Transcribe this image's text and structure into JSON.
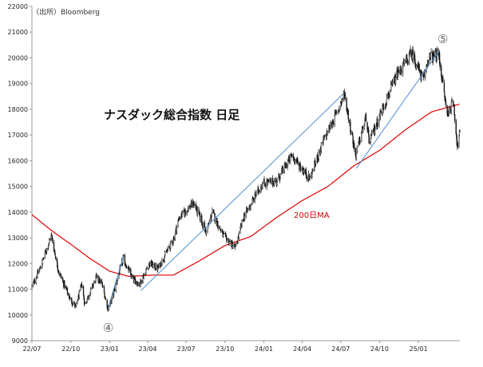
{
  "chart_data": {
    "type": "candlestick",
    "source": "（出所）Bloomberg",
    "title": "ナスダック総合指数 日足",
    "ylim": [
      9000,
      22000
    ],
    "y_ticks": [
      "9000",
      "10000",
      "11000",
      "12000",
      "13000",
      "14000",
      "15000",
      "16000",
      "17000",
      "18000",
      "19000",
      "20000",
      "21000",
      "22000"
    ],
    "x_ticks": [
      "22/07",
      "22/10",
      "23/01",
      "23/04",
      "23/07",
      "23/10",
      "24/01",
      "24/04",
      "24/07",
      "24/10",
      "25/01"
    ],
    "x_start": "2022-07-01",
    "x_end": "2025-04-09",
    "price_path": [
      [
        "2022-07-01",
        11100
      ],
      [
        "2022-07-20",
        11800
      ],
      [
        "2022-08-16",
        13100
      ],
      [
        "2022-09-02",
        11700
      ],
      [
        "2022-09-30",
        10600
      ],
      [
        "2022-10-13",
        10300
      ],
      [
        "2022-10-27",
        11200
      ],
      [
        "2022-11-03",
        10400
      ],
      [
        "2022-11-30",
        11450
      ],
      [
        "2022-12-13",
        11250
      ],
      [
        "2022-12-28",
        10250
      ],
      [
        "2023-01-06",
        10600
      ],
      [
        "2023-02-02",
        12200
      ],
      [
        "2023-02-24",
        11400
      ],
      [
        "2023-03-13",
        11200
      ],
      [
        "2023-04-05",
        12000
      ],
      [
        "2023-04-25",
        11800
      ],
      [
        "2023-05-31",
        12900
      ],
      [
        "2023-06-15",
        13800
      ],
      [
        "2023-07-19",
        14350
      ],
      [
        "2023-08-18",
        13200
      ],
      [
        "2023-09-01",
        14000
      ],
      [
        "2023-09-26",
        13100
      ],
      [
        "2023-10-26",
        12600
      ],
      [
        "2023-11-14",
        13800
      ],
      [
        "2023-12-28",
        15100
      ],
      [
        "2024-01-31",
        15200
      ],
      [
        "2024-03-07",
        16200
      ],
      [
        "2024-04-19",
        15300
      ],
      [
        "2024-05-22",
        16800
      ],
      [
        "2024-06-20",
        17800
      ],
      [
        "2024-07-10",
        18600
      ],
      [
        "2024-08-05",
        16200
      ],
      [
        "2024-08-30",
        17700
      ],
      [
        "2024-09-06",
        16700
      ],
      [
        "2024-10-15",
        18300
      ],
      [
        "2024-11-11",
        19300
      ],
      [
        "2024-12-16",
        20200
      ],
      [
        "2025-01-13",
        19100
      ],
      [
        "2025-01-24",
        20000
      ],
      [
        "2025-02-18",
        20100
      ],
      [
        "2025-03-10",
        17800
      ],
      [
        "2025-03-25",
        18300
      ],
      [
        "2025-04-03",
        16550
      ],
      [
        "2025-04-09",
        17100
      ]
    ],
    "ma200_path": [
      [
        "2022-07-01",
        13900
      ],
      [
        "2022-08-15",
        13300
      ],
      [
        "2022-10-01",
        12750
      ],
      [
        "2022-11-15",
        12200
      ],
      [
        "2023-01-01",
        11700
      ],
      [
        "2023-02-15",
        11500
      ],
      [
        "2023-04-15",
        11550
      ],
      [
        "2023-06-01",
        11550
      ],
      [
        "2023-08-01",
        12100
      ],
      [
        "2023-10-01",
        12700
      ],
      [
        "2023-12-01",
        13050
      ],
      [
        "2024-02-01",
        13800
      ],
      [
        "2024-04-01",
        14450
      ],
      [
        "2024-06-01",
        15000
      ],
      [
        "2024-08-01",
        15800
      ],
      [
        "2024-10-01",
        16400
      ],
      [
        "2024-12-01",
        17200
      ],
      [
        "2025-02-01",
        17900
      ],
      [
        "2025-04-09",
        18200
      ]
    ],
    "trendlines": [
      [
        [
          "2022-12-28",
          10250
        ],
        [
          "2023-02-02",
          12250
        ]
      ],
      [
        [
          "2023-03-16",
          10950
        ],
        [
          "2024-07-10",
          18650
        ]
      ],
      [
        [
          "2024-08-07",
          15700
        ],
        [
          "2025-02-20",
          20300
        ]
      ]
    ],
    "annotations": {
      "ma_label": "200日MA",
      "wave4": "④",
      "wave5": "⑤"
    },
    "colors": {
      "candles": "#111111",
      "ma": "#e00000",
      "trend": "#4f8fd0",
      "axis": "#999999"
    }
  }
}
